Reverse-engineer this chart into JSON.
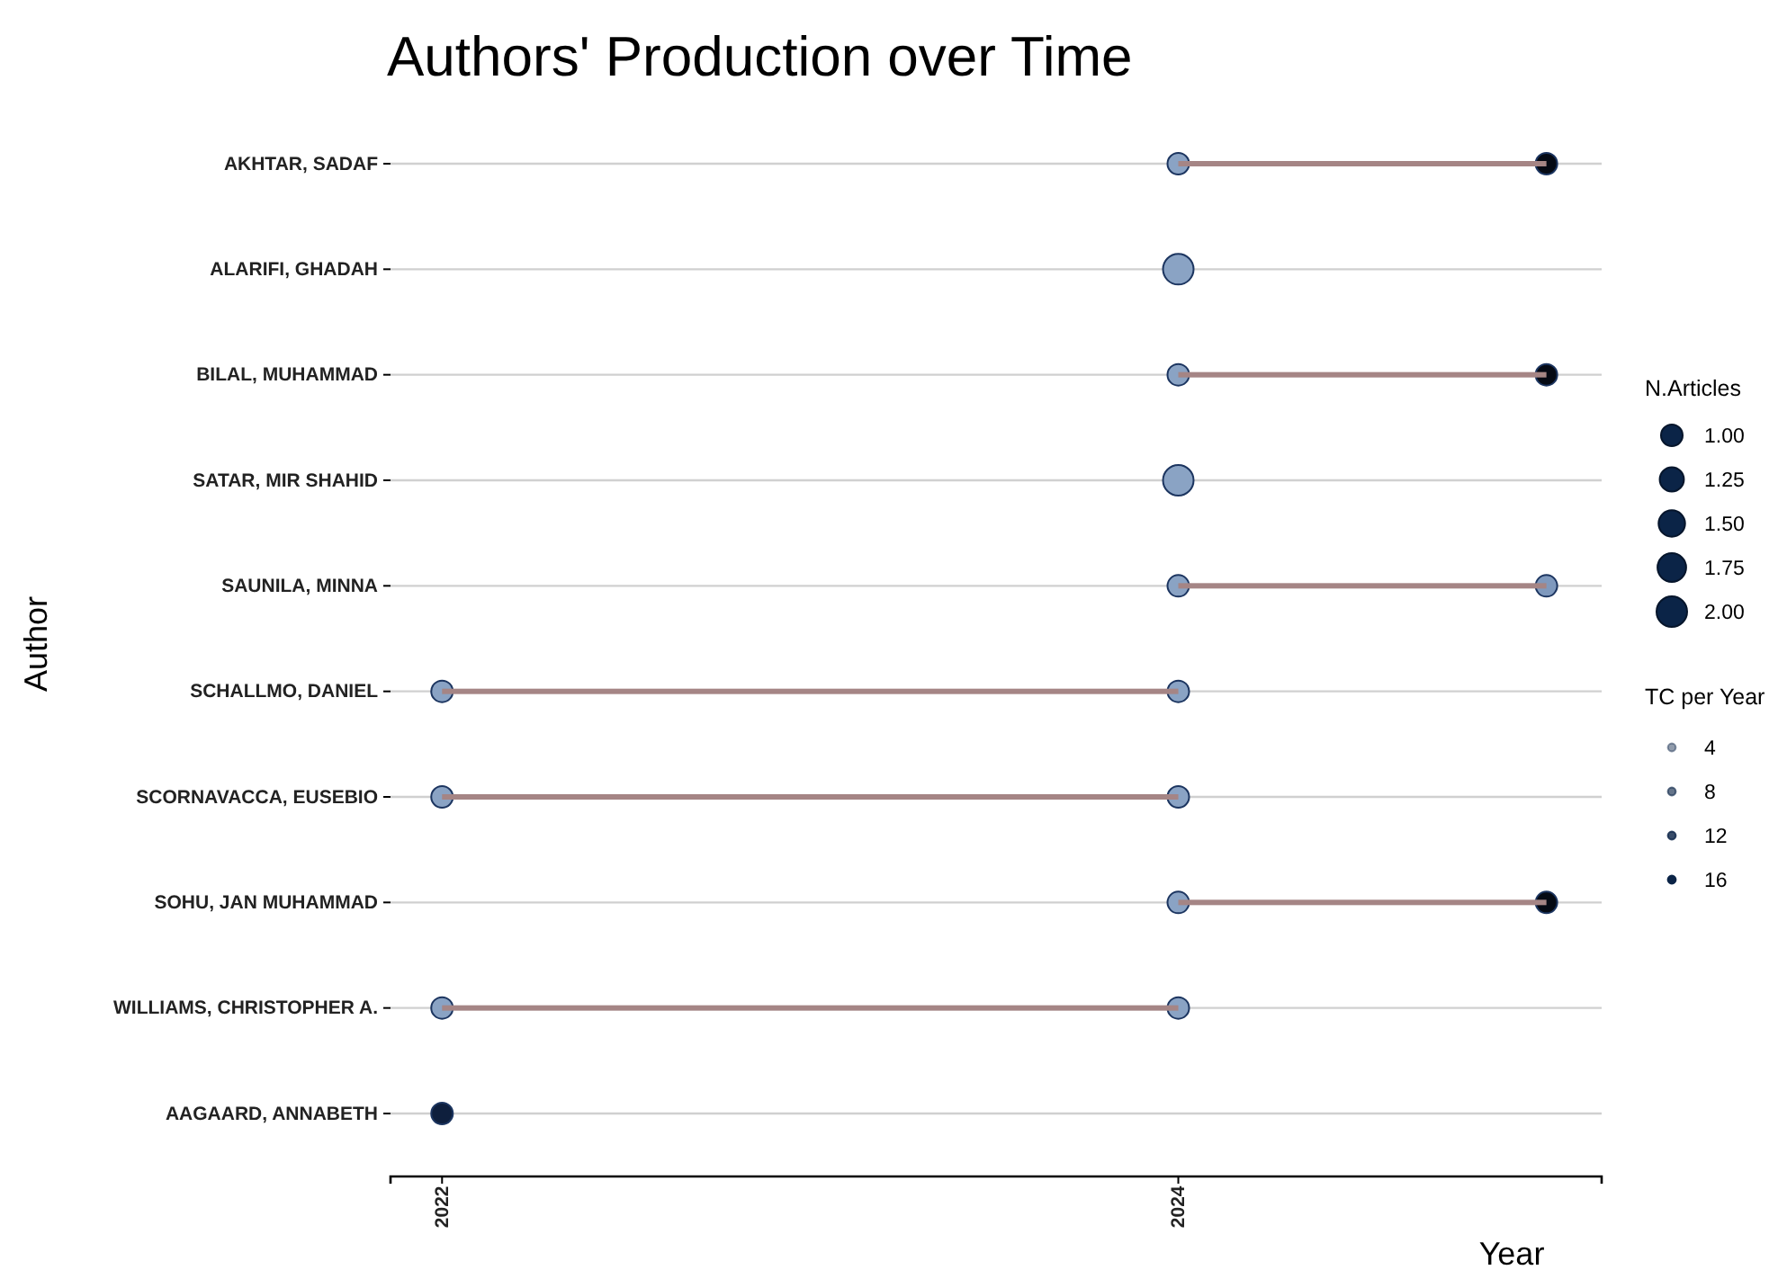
{
  "chart_data": {
    "type": "bubble",
    "orientation": "horizontal",
    "title": "Authors' Production over Time",
    "xlabel": "Year",
    "ylabel": "Author",
    "categories": [
      "AKHTAR, SADAF",
      "ALARIFI, GHADAH",
      "BILAL, MUHAMMAD",
      "SATAR, MIR SHAHID",
      "SAUNILA, MINNA",
      "SCHALLMO, DANIEL",
      "SCORNAVACCA, EUSEBIO",
      "SOHU, JAN MUHAMMAD",
      "WILLIAMS, CHRISTOPHER A.",
      "AAGAARD, ANNABETH"
    ],
    "xlim": [
      2021.86,
      2025.15
    ],
    "xticks": [
      2022,
      2024
    ],
    "grid": "y",
    "legend_title": "N.Articles",
    "size_legend": [
      {
        "value": 1,
        "label": "1.00"
      },
      1.25,
      {
        "value": 1.5,
        "label": "1.50"
      },
      1.75,
      {
        "value": 2,
        "label": "2.00"
      }
    ],
    "annotations": [
      "TC per Year",
      "4",
      "8",
      "12",
      "16"
    ],
    "series": [
      {
        "type": "bar",
        "color": "#a58585",
        "base": [
          2024,
          null,
          2024,
          null,
          2024,
          2022,
          2022,
          2024,
          2022,
          null
        ],
        "values": [
          1,
          null,
          1,
          null,
          1,
          2,
          2,
          1,
          2,
          null
        ]
      },
      {
        "color": "#1c3560",
        "values": [
          2024,
          2024,
          2024,
          2024,
          2024,
          2022,
          2022,
          2024,
          2022,
          2022
        ],
        "sizes": [
          1,
          2,
          1,
          2,
          1,
          1,
          1,
          1,
          1,
          1
        ],
        "colors": [
          "#8aa3c4",
          "#8aa3c4",
          "#8aa3c4",
          "#8aa3c4",
          "#8aa3c4",
          "#8aa3c4",
          "#8aa3c4",
          "#8aa3c4",
          "#8aa3c4",
          "#0e1f3d"
        ]
      },
      {
        "color": "#1c3560",
        "values": [
          2025,
          null,
          2025,
          null,
          2025,
          2024,
          2024,
          2025,
          2024,
          null
        ],
        "sizes": [
          1,
          null,
          1,
          null,
          1,
          1,
          1,
          1,
          1,
          null
        ],
        "colors": [
          "#050a14",
          null,
          "#050a14",
          null,
          "#7f99bd",
          "#8aa3c4",
          "#8aa3c4",
          "#050a14",
          "#8aa3c4",
          null
        ]
      }
    ]
  }
}
